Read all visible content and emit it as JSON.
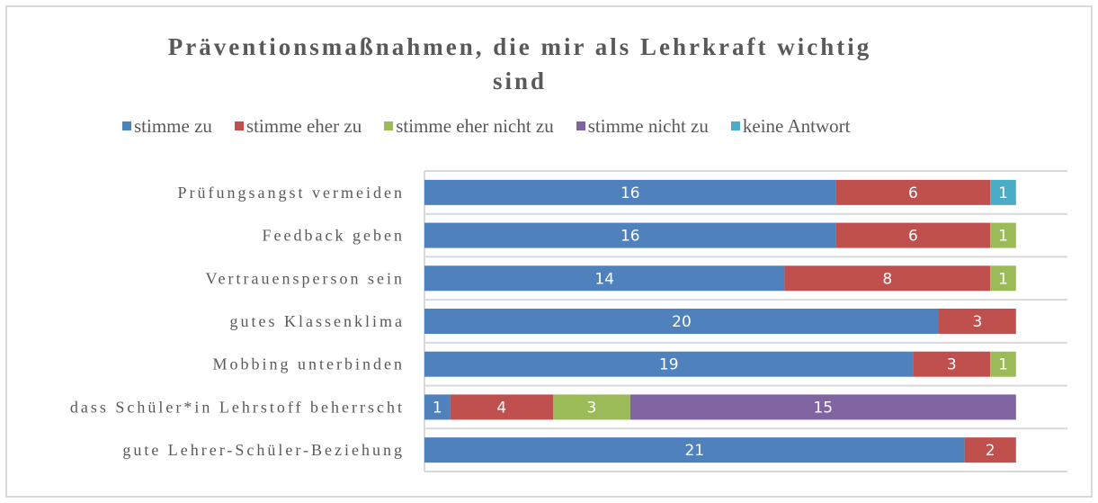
{
  "chart_data": {
    "type": "bar",
    "orientation": "horizontal",
    "stacked": true,
    "title": "Präventionsmaßnahmen, die mir als Lehrkraft wichtig sind",
    "title_lines": [
      "Präventionsmaßnahmen, die mir als Lehrkraft wichtig",
      "sind"
    ],
    "xlabel": "",
    "ylabel": "",
    "xlim": [
      0,
      25
    ],
    "grid": true,
    "legend_position": "top",
    "categories": [
      "Prüfungsangst vermeiden",
      "Feedback geben",
      "Vertrauensperson sein",
      "gutes Klassenklima",
      "Mobbing unterbinden",
      "dass Schüler*in Lehrstoff beherrscht",
      "gute Lehrer-Schüler-Beziehung"
    ],
    "series": [
      {
        "name": "stimme zu",
        "color": "#4f81bd",
        "values": [
          16,
          16,
          14,
          20,
          19,
          1,
          21
        ]
      },
      {
        "name": "stimme eher zu",
        "color": "#c0504d",
        "values": [
          6,
          6,
          8,
          3,
          3,
          4,
          2
        ]
      },
      {
        "name": "stimme eher nicht zu",
        "color": "#9bbb59",
        "values": [
          0,
          1,
          1,
          0,
          1,
          3,
          0
        ]
      },
      {
        "name": "stimme nicht zu",
        "color": "#8064a2",
        "values": [
          0,
          0,
          0,
          0,
          0,
          15,
          0
        ]
      },
      {
        "name": "keine Antwort",
        "color": "#4bacc6",
        "values": [
          1,
          null,
          null,
          null,
          null,
          0,
          null
        ]
      }
    ],
    "data_labels": [
      [
        "16",
        "6",
        "0",
        "",
        "1"
      ],
      [
        "16",
        "6",
        "1",
        "0",
        ""
      ],
      [
        "14",
        "8",
        "1",
        "0",
        ""
      ],
      [
        "20",
        "3",
        "0",
        "",
        ""
      ],
      [
        "19",
        "3",
        "1",
        "0",
        ""
      ],
      [
        "1",
        "4",
        "3",
        "15",
        "0"
      ],
      [
        "21",
        "2",
        "0",
        "",
        ""
      ]
    ]
  }
}
